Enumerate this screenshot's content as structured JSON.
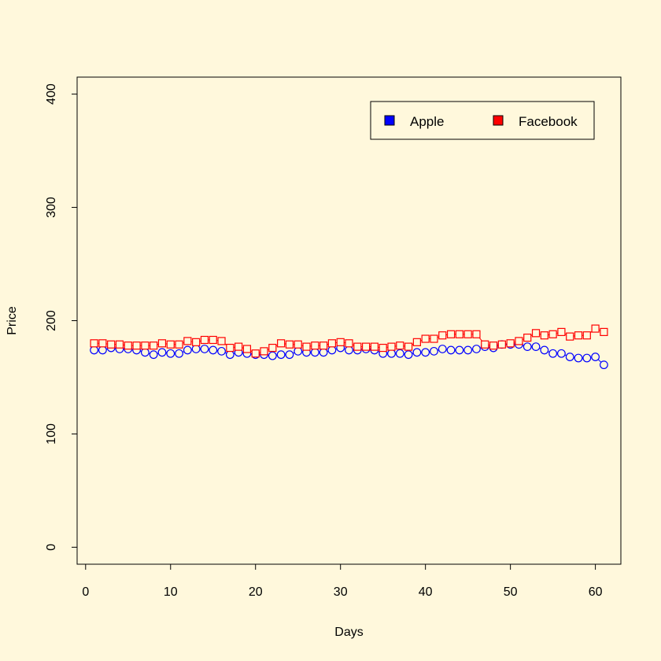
{
  "background_color": "#FFF8DC",
  "chart_data": {
    "type": "line",
    "title": "",
    "xlabel": "Days",
    "ylabel": "Price",
    "xlim": [
      -1,
      63
    ],
    "ylim": [
      -15,
      415
    ],
    "x_ticks": [
      0,
      10,
      20,
      30,
      40,
      50,
      60
    ],
    "y_ticks": [
      0,
      100,
      200,
      300,
      400
    ],
    "grid": false,
    "legend_position": "top-right",
    "series": [
      {
        "name": "Apple",
        "color": "#0000FF",
        "marker": "circle",
        "x": [
          1,
          2,
          3,
          4,
          5,
          6,
          7,
          8,
          9,
          10,
          11,
          12,
          13,
          14,
          15,
          16,
          17,
          18,
          19,
          20,
          21,
          22,
          23,
          24,
          25,
          26,
          27,
          28,
          29,
          30,
          31,
          32,
          33,
          34,
          35,
          36,
          37,
          38,
          39,
          40,
          41,
          42,
          43,
          44,
          45,
          46,
          47,
          48,
          49,
          50,
          51,
          52,
          53,
          54,
          55,
          56,
          57,
          58,
          59,
          60,
          61
        ],
        "values": [
          174,
          174,
          176,
          175,
          175,
          174,
          172,
          170,
          172,
          171,
          171,
          174,
          175,
          175,
          174,
          173,
          170,
          172,
          171,
          170,
          170,
          169,
          170,
          170,
          173,
          172,
          172,
          172,
          174,
          176,
          174,
          174,
          175,
          174,
          171,
          171,
          171,
          170,
          172,
          172,
          173,
          175,
          174,
          174,
          174,
          175,
          177,
          176,
          179,
          179,
          179,
          177,
          177,
          174,
          171,
          171,
          168,
          167,
          167,
          168,
          161
        ]
      },
      {
        "name": "Facebook",
        "color": "#FF0000",
        "marker": "square",
        "x": [
          1,
          2,
          3,
          4,
          5,
          6,
          7,
          8,
          9,
          10,
          11,
          12,
          13,
          14,
          15,
          16,
          17,
          18,
          19,
          20,
          21,
          22,
          23,
          24,
          25,
          26,
          27,
          28,
          29,
          30,
          31,
          32,
          33,
          34,
          35,
          36,
          37,
          38,
          39,
          40,
          41,
          42,
          43,
          44,
          45,
          46,
          47,
          48,
          49,
          50,
          51,
          52,
          53,
          54,
          55,
          56,
          57,
          58,
          59,
          60,
          61
        ],
        "values": [
          180,
          180,
          179,
          179,
          178,
          178,
          178,
          178,
          180,
          179,
          179,
          182,
          181,
          183,
          183,
          182,
          176,
          177,
          175,
          171,
          173,
          176,
          180,
          179,
          179,
          177,
          178,
          178,
          180,
          181,
          180,
          177,
          177,
          177,
          176,
          177,
          178,
          177,
          181,
          184,
          184,
          187,
          188,
          188,
          188,
          188,
          179,
          178,
          179,
          180,
          182,
          185,
          189,
          187,
          188,
          190,
          186,
          187,
          187,
          193,
          190
        ]
      }
    ]
  }
}
